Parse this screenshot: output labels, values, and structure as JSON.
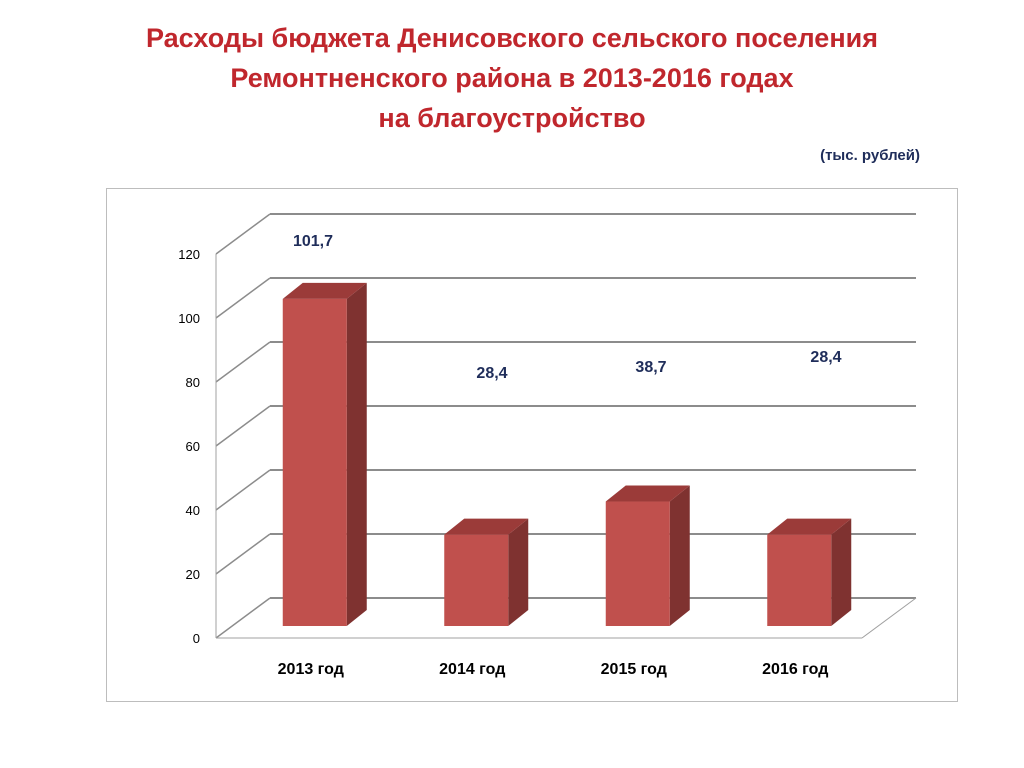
{
  "title_lines": [
    "Расходы бюджета Денисовского сельского поселения",
    "Ремонтненского района  в 2013-2016 годах",
    "на благоустройство"
  ],
  "units": "(тыс. рублей)",
  "colors": {
    "title": "#c0272d",
    "bar_front": "#c0504d",
    "bar_side": "#7f3230",
    "bar_top": "#9b3b39",
    "label": "#1f2d5a",
    "grid": "#8c8c8c"
  },
  "chart_data": {
    "type": "bar",
    "categories": [
      "2013 год",
      "2014 год",
      "2015 год",
      "2016 год"
    ],
    "values": [
      101.7,
      28.4,
      38.7,
      28.4
    ],
    "data_labels": [
      "101,7",
      "28,4",
      "38,7",
      "28,4"
    ],
    "y_ticks": [
      "0",
      "20",
      "40",
      "60",
      "80",
      "100",
      "120"
    ],
    "ylim": [
      0,
      120
    ],
    "grid": true,
    "style": "3d-column"
  }
}
